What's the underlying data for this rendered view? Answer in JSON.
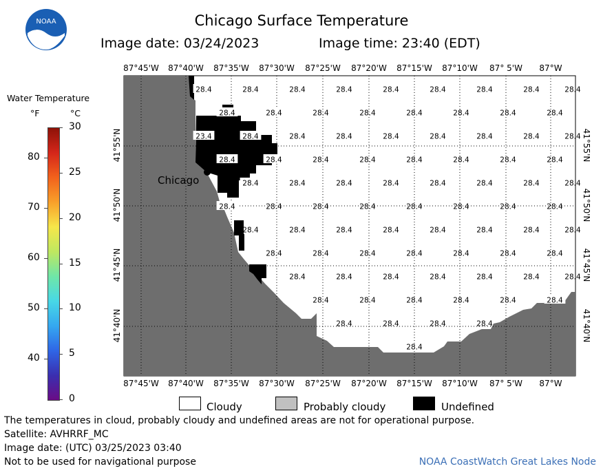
{
  "logo": {
    "text": "NOAA"
  },
  "header": {
    "title": "Chicago Surface Temperature",
    "image_date": "Image date: 03/24/2023",
    "image_time": "Image time: 23:40 (EDT)"
  },
  "colorbar": {
    "title": "Water Temperature",
    "unit_f": "°F",
    "unit_c": "°C",
    "f_ticks": [
      "80",
      "70",
      "60",
      "50",
      "40"
    ],
    "f_values": [
      80,
      70,
      60,
      50,
      40
    ],
    "c_ticks": [
      "30",
      "25",
      "20",
      "15",
      "10",
      "5",
      "0"
    ],
    "c_values": [
      30,
      25,
      20,
      15,
      10,
      5,
      0
    ],
    "colors": [
      "#6a0c86",
      "#3a2fb0",
      "#2f66e6",
      "#35a8f0",
      "#48d8e6",
      "#6fe6a8",
      "#bfe860",
      "#f6e64a",
      "#f8a02a",
      "#f2621c",
      "#d4261a",
      "#8e1208"
    ]
  },
  "map": {
    "top_lon_labels": [
      "87°45'W",
      "87°40'W",
      "87°35'W",
      "87°30'W",
      "87°25'W",
      "87°20'W",
      "87°15'W",
      "87°10'W",
      "87° 5'W",
      "87°W"
    ],
    "bottom_lon_labels": [
      "87°45'W",
      "87°40'W",
      "87°35'W",
      "87°30'W",
      "87°25'W",
      "87°20'W",
      "87°15'W",
      "87°10'W",
      "87° 5'W",
      "87°W"
    ],
    "lat_labels": [
      "41°55'N",
      "41°50'N",
      "41°45'N",
      "41°40'N"
    ],
    "city": "Chicago",
    "temp_value": "28.4",
    "boxed_value": "23.4",
    "colors": {
      "land": "#6e6e6e",
      "water": "#ffffff",
      "undefined": "#000000"
    }
  },
  "legend": {
    "cloudy": "Cloudy",
    "probably_cloudy": "Probably cloudy",
    "undefined": "Undefined",
    "colors": {
      "cloudy": "#ffffff",
      "probably_cloudy": "#c0c0c0",
      "undefined": "#000000"
    }
  },
  "footer": {
    "note": "The temperatures in cloud, probably cloudy and undefined areas are not for operational purpose.",
    "satellite": "Satellite: AVHRRF_MC",
    "utc_date": "Image date: (UTC) 03/25/2023  03:40",
    "nav": "Not to be used for navigational purpose",
    "node": "NOAA CoastWatch Great Lakes Node"
  }
}
